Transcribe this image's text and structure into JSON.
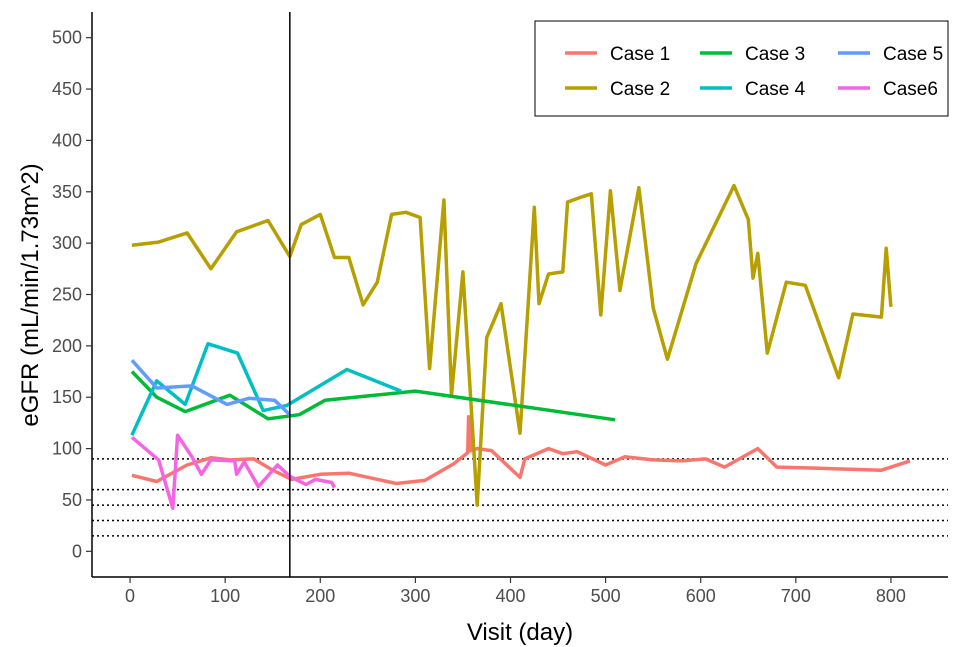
{
  "chart_data": {
    "type": "line",
    "xlabel": "Visit (day)",
    "ylabel": "eGFR (mL/min/1.73m^2)",
    "xlim": [
      -40,
      860
    ],
    "ylim": [
      -25,
      525
    ],
    "xticks": [
      0,
      100,
      200,
      300,
      400,
      500,
      600,
      700,
      800
    ],
    "yticks": [
      0,
      50,
      100,
      150,
      200,
      250,
      300,
      350,
      400,
      450,
      500
    ],
    "vertical_line_x": 168,
    "reference_lines_y": [
      15,
      30,
      45,
      60,
      90
    ],
    "legend_position": "top-right",
    "grid": false,
    "series": [
      {
        "name": "Case 1",
        "color": "#F8766D",
        "x": [
          2,
          28,
          60,
          85,
          105,
          130,
          150,
          170,
          200,
          230,
          280,
          310,
          340,
          355,
          356,
          358,
          365,
          380,
          410,
          415,
          440,
          455,
          470,
          500,
          520,
          550,
          580,
          605,
          625,
          660,
          680,
          720,
          790,
          820
        ],
        "y": [
          74,
          68,
          84,
          91,
          89,
          90,
          79,
          70,
          75,
          76,
          66,
          69,
          85,
          96,
          131,
          98,
          100,
          98,
          72,
          90,
          100,
          95,
          97,
          84,
          92,
          89,
          88,
          90,
          82,
          100,
          82,
          81,
          79,
          88
        ]
      },
      {
        "name": "Case 2",
        "color": "#B79F00",
        "x": [
          2,
          30,
          60,
          85,
          112,
          145,
          168,
          180,
          200,
          215,
          230,
          245,
          260,
          275,
          290,
          305,
          315,
          330,
          338,
          350,
          365,
          375,
          390,
          410,
          425,
          430,
          440,
          455,
          460,
          475,
          485,
          495,
          505,
          515,
          535,
          550,
          565,
          595,
          635,
          650,
          655,
          660,
          670,
          690,
          710,
          745,
          760,
          790,
          795,
          800
        ],
        "y": [
          298,
          301,
          310,
          275,
          311,
          322,
          287,
          318,
          328,
          286,
          286,
          240,
          262,
          328,
          330,
          325,
          178,
          342,
          152,
          272,
          45,
          208,
          241,
          115,
          335,
          241,
          270,
          272,
          340,
          345,
          348,
          230,
          351,
          254,
          354,
          237,
          187,
          280,
          356,
          323,
          266,
          290,
          193,
          262,
          259,
          169,
          231,
          228,
          295,
          238
        ]
      },
      {
        "name": "Case 3",
        "color": "#00BA38",
        "x": [
          2,
          28,
          58,
          105,
          145,
          178,
          205,
          300,
          510
        ],
        "y": [
          175,
          150,
          136,
          152,
          129,
          133,
          147,
          156,
          128
        ]
      },
      {
        "name": "Case 4",
        "color": "#00BFC4",
        "x": [
          2,
          28,
          58,
          82,
          113,
          140,
          165,
          228,
          285
        ],
        "y": [
          113,
          166,
          143,
          202,
          193,
          137,
          142,
          177,
          156
        ]
      },
      {
        "name": "Case 5",
        "color": "#619CFF",
        "x": [
          2,
          28,
          65,
          102,
          125,
          152,
          168
        ],
        "y": [
          186,
          159,
          161,
          143,
          149,
          147,
          133
        ]
      },
      {
        "name": "Case6",
        "color": "#F564E3",
        "x": [
          2,
          30,
          45,
          50,
          65,
          75,
          85,
          110,
          112,
          120,
          135,
          155,
          168,
          185,
          195,
          212,
          215
        ],
        "y": [
          111,
          89,
          42,
          113,
          92,
          75,
          89,
          88,
          75,
          87,
          63,
          84,
          73,
          65,
          70,
          67,
          62
        ]
      }
    ]
  }
}
